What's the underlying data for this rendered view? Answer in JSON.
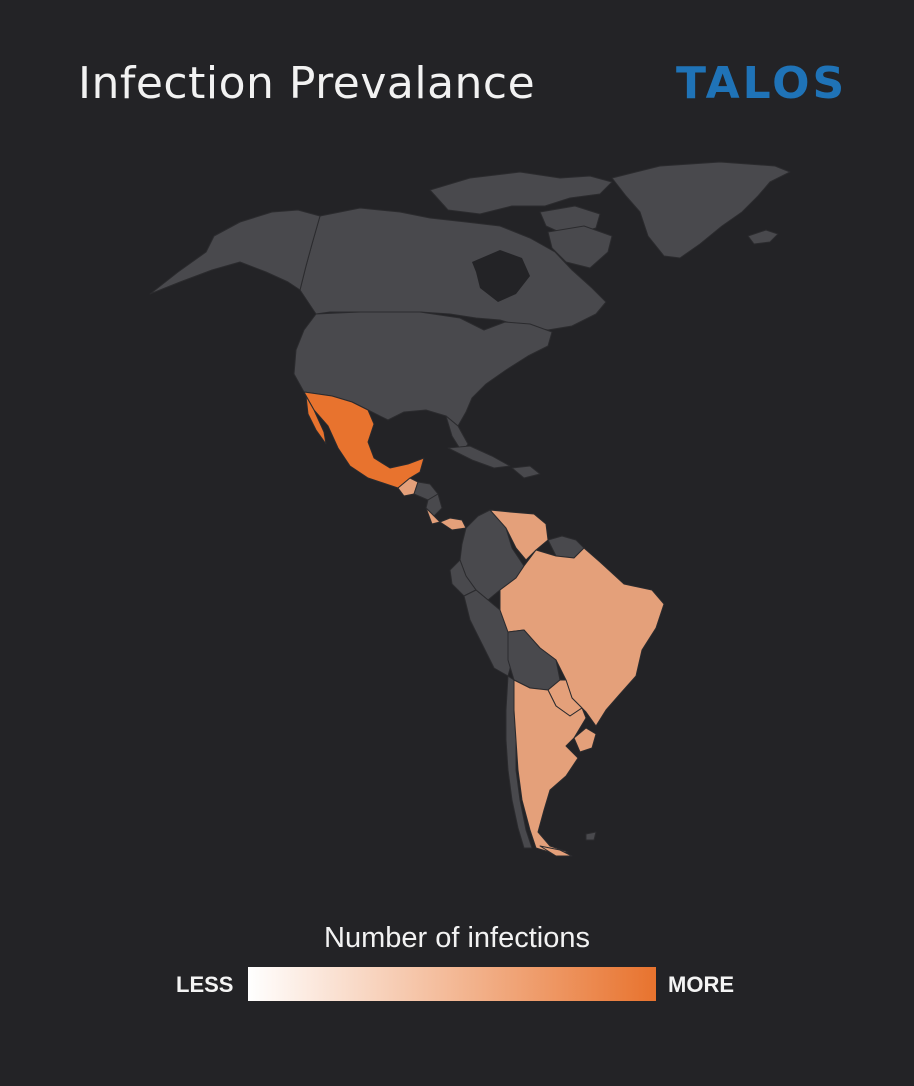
{
  "header": {
    "title": "Infection Prevalance",
    "logo_text": "TALOS"
  },
  "colors": {
    "background": "#232326",
    "land_no_data": "#49494d",
    "border": "#2b2b2e",
    "high": "#e8732e",
    "medium": "#e4a07a",
    "scale_start": "#ffffff",
    "scale_end": "#e8732e"
  },
  "map": {
    "region": "Americas",
    "countries": [
      {
        "name": "Mexico",
        "level": "high"
      },
      {
        "name": "Guatemala",
        "level": "medium"
      },
      {
        "name": "Costa Rica",
        "level": "medium"
      },
      {
        "name": "Panama",
        "level": "medium"
      },
      {
        "name": "Venezuela",
        "level": "medium"
      },
      {
        "name": "Brazil",
        "level": "medium"
      },
      {
        "name": "Paraguay",
        "level": "medium"
      },
      {
        "name": "Uruguay",
        "level": "medium"
      },
      {
        "name": "Argentina",
        "level": "medium"
      },
      {
        "name": "Canada",
        "level": "none"
      },
      {
        "name": "United States",
        "level": "none"
      },
      {
        "name": "Greenland",
        "level": "none"
      },
      {
        "name": "Colombia",
        "level": "none"
      },
      {
        "name": "Ecuador",
        "level": "none"
      },
      {
        "name": "Peru",
        "level": "none"
      },
      {
        "name": "Bolivia",
        "level": "none"
      },
      {
        "name": "Chile",
        "level": "none"
      },
      {
        "name": "Guyana",
        "level": "none"
      },
      {
        "name": "Cuba",
        "level": "none"
      }
    ]
  },
  "legend": {
    "title": "Number of infections",
    "less_label": "LESS",
    "more_label": "MORE"
  }
}
